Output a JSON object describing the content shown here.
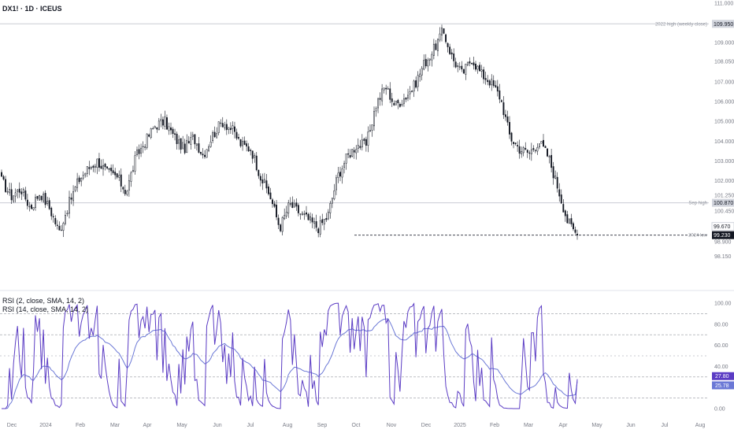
{
  "header": {
    "symbol_line": "DX1! · 1D · ICEUS",
    "rsi2_legend": "RSI (2, close, SMA, 14, 2)",
    "rsi14_legend": "RSI (14, close, SMA, 14, 2)"
  },
  "colors": {
    "candle": "#131722",
    "rsi2_line": "#5b3cc4",
    "rsi14_line": "#6b78d6",
    "hline": "#c9ccd4",
    "dashed": "#2a2e39",
    "grid": "#f0f3fa"
  },
  "chart_data": [
    {
      "type": "candlestick",
      "price_ticks": [
        "111.000",
        "110.050",
        "109.000",
        "108.050",
        "107.000",
        "106.000",
        "105.000",
        "104.000",
        "103.000",
        "102.000",
        "101.250",
        "100.450",
        "98.900",
        "98.150"
      ],
      "x_tick_labels": [
        "Dec",
        "2024",
        "Feb",
        "Mar",
        "Apr",
        "May",
        "Jun",
        "Jul",
        "Aug",
        "Sep",
        "Oct",
        "Nov",
        "Dec",
        "2025",
        "Feb",
        "Mar",
        "Apr",
        "May",
        "Jun",
        "Jul",
        "Aug"
      ],
      "ylim": [
        97.5,
        111.0
      ],
      "close_anchors": [
        [
          "Dec",
          102.0
        ],
        [
          "",
          101.2
        ],
        [
          "",
          101.6
        ],
        [
          "",
          100.6
        ],
        [
          "",
          101.4
        ],
        [
          "2024",
          100.6
        ],
        [
          "",
          99.4
        ],
        [
          "",
          100.8
        ],
        [
          "",
          102.0
        ],
        [
          "Feb",
          102.6
        ],
        [
          "",
          103.0
        ],
        [
          "",
          102.4
        ],
        [
          "Mar",
          102.2
        ],
        [
          "",
          101.4
        ],
        [
          "",
          103.2
        ],
        [
          "Apr",
          104.0
        ],
        [
          "",
          104.8
        ],
        [
          "",
          105.0
        ],
        [
          "May",
          104.2
        ],
        [
          "",
          103.6
        ],
        [
          "",
          104.2
        ],
        [
          "Jun",
          103.3
        ],
        [
          "",
          104.3
        ],
        [
          "",
          105.0
        ],
        [
          "Jul",
          104.6
        ],
        [
          "",
          103.8
        ],
        [
          "",
          103.6
        ],
        [
          "Aug",
          102.2
        ],
        [
          "",
          101.2
        ],
        [
          "",
          99.6
        ],
        [
          "",
          100.8
        ],
        [
          "Sep",
          100.4
        ],
        [
          "",
          100.0
        ],
        [
          "",
          99.6
        ],
        [
          "Oct",
          100.2
        ],
        [
          "",
          102.2
        ],
        [
          "",
          103.2
        ],
        [
          "",
          103.8
        ],
        [
          "Nov",
          103.8
        ],
        [
          "",
          105.8
        ],
        [
          "",
          106.8
        ],
        [
          "",
          105.8
        ],
        [
          "Dec",
          106.2
        ],
        [
          "",
          106.8
        ],
        [
          "",
          107.9
        ],
        [
          "",
          108.6
        ],
        [
          "2025",
          109.6
        ],
        [
          "",
          108.2
        ],
        [
          "",
          107.4
        ],
        [
          "Feb",
          108.2
        ],
        [
          "",
          107.4
        ],
        [
          "",
          107.0
        ],
        [
          "",
          106.2
        ],
        [
          "Mar",
          104.2
        ],
        [
          "",
          103.6
        ],
        [
          "",
          103.4
        ],
        [
          "",
          104.0
        ],
        [
          "Apr",
          103.2
        ],
        [
          "",
          101.6
        ],
        [
          "",
          99.9
        ],
        [
          "",
          99.23
        ]
      ],
      "price_labels": [
        {
          "text": "2022 high (weekly close)",
          "value": 109.95,
          "tag": "109.950"
        },
        {
          "text": "Sep high",
          "value": 100.87,
          "tag": "100.870"
        },
        {
          "text": "",
          "value": 99.67,
          "tag": "99.670"
        },
        {
          "text": "2024 low",
          "value": 99.23,
          "tag": "99.230"
        }
      ]
    },
    {
      "type": "line",
      "name": "RSI",
      "y_ticks": [
        "100.00",
        "80.00",
        "60.00",
        "40.00",
        "20.00",
        "0.00"
      ],
      "ylim": [
        0,
        100
      ],
      "levels": [
        90,
        70,
        50,
        30,
        10
      ],
      "series": [
        {
          "name": "RSI (2, close, SMA, 14, 2)",
          "last": 27.8,
          "tag": "27.80"
        },
        {
          "name": "RSI (14, close, SMA, 14, 2)",
          "last": 25.78,
          "tag": "25.78"
        }
      ]
    }
  ]
}
